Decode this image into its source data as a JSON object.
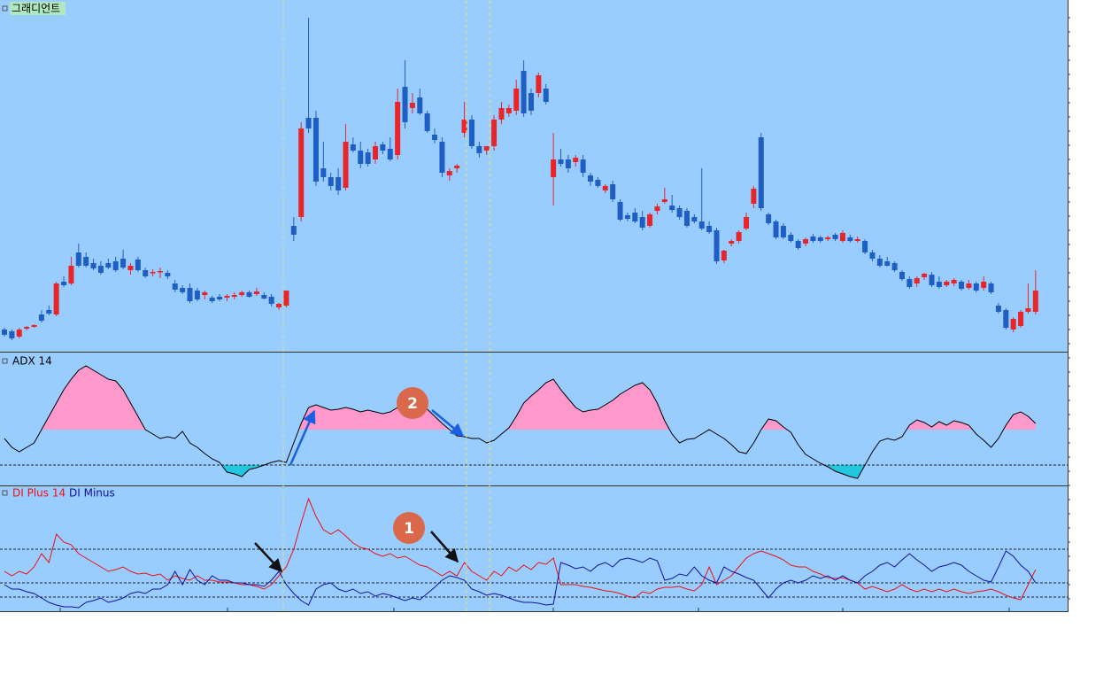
{
  "chart_data": [
    {
      "type": "candlestick",
      "title": "그래디언트",
      "up_color": "#e8262a",
      "down_color": "#1f5fc4",
      "ylim": [
        0,
        400
      ],
      "ohlc": [
        [
          28,
          30,
          20,
          22
        ],
        [
          26,
          28,
          16,
          18
        ],
        [
          20,
          30,
          18,
          28
        ],
        [
          29,
          32,
          27,
          31
        ],
        [
          31,
          34,
          30,
          33
        ],
        [
          45,
          50,
          36,
          38
        ],
        [
          50,
          55,
          44,
          46
        ],
        [
          45,
          82,
          43,
          80
        ],
        [
          82,
          88,
          76,
          78
        ],
        [
          80,
          110,
          78,
          100
        ],
        [
          115,
          125,
          98,
          100
        ],
        [
          110,
          115,
          98,
          100
        ],
        [
          103,
          108,
          95,
          97
        ],
        [
          100,
          105,
          90,
          92
        ],
        [
          103,
          108,
          96,
          98
        ],
        [
          105,
          110,
          93,
          95
        ],
        [
          108,
          118,
          96,
          98
        ],
        [
          95,
          103,
          90,
          100
        ],
        [
          107,
          110,
          93,
          95
        ],
        [
          95,
          98,
          86,
          88
        ],
        [
          92,
          96,
          88,
          93
        ],
        [
          93,
          98,
          86,
          94
        ],
        [
          92,
          95,
          85,
          88
        ],
        [
          80,
          84,
          70,
          73
        ],
        [
          75,
          78,
          68,
          70
        ],
        [
          75,
          80,
          58,
          60
        ],
        [
          72,
          75,
          60,
          62
        ],
        [
          67,
          72,
          62,
          70
        ],
        [
          64,
          66,
          58,
          60
        ],
        [
          65,
          68,
          60,
          62
        ],
        [
          64,
          68,
          60,
          66
        ],
        [
          65,
          70,
          62,
          67
        ],
        [
          67,
          72,
          65,
          70
        ],
        [
          70,
          72,
          64,
          65
        ],
        [
          68,
          75,
          66,
          71
        ],
        [
          67,
          70,
          62,
          63
        ],
        [
          65,
          68,
          54,
          57
        ],
        [
          53,
          58,
          50,
          57
        ],
        [
          55,
          72,
          53,
          72
        ],
        [
          145,
          155,
          128,
          135
        ],
        [
          155,
          262,
          150,
          255
        ],
        [
          267,
          380,
          250,
          255
        ],
        [
          267,
          275,
          190,
          195
        ],
        [
          210,
          240,
          195,
          200
        ],
        [
          200,
          205,
          185,
          190
        ],
        [
          200,
          210,
          180,
          185
        ],
        [
          188,
          260,
          185,
          240
        ],
        [
          237,
          245,
          228,
          230
        ],
        [
          230,
          240,
          210,
          215
        ],
        [
          228,
          232,
          212,
          215
        ],
        [
          220,
          240,
          215,
          235
        ],
        [
          237,
          240,
          226,
          230
        ],
        [
          232,
          245,
          218,
          220
        ],
        [
          225,
          300,
          220,
          285
        ],
        [
          302,
          332,
          255,
          262
        ],
        [
          278,
          295,
          272,
          284
        ],
        [
          290,
          300,
          270,
          272
        ],
        [
          272,
          275,
          250,
          252
        ],
        [
          248,
          255,
          238,
          242
        ],
        [
          240,
          245,
          200,
          205
        ],
        [
          202,
          210,
          196,
          207
        ],
        [
          210,
          215,
          205,
          213
        ],
        [
          250,
          285,
          245,
          265
        ],
        [
          265,
          270,
          232,
          235
        ],
        [
          235,
          240,
          222,
          227
        ],
        [
          230,
          235,
          225,
          235
        ],
        [
          235,
          270,
          230,
          265
        ],
        [
          265,
          285,
          260,
          278
        ],
        [
          272,
          282,
          268,
          278
        ],
        [
          275,
          310,
          270,
          300
        ],
        [
          320,
          332,
          268,
          272
        ],
        [
          295,
          300,
          270,
          275
        ],
        [
          295,
          318,
          290,
          315
        ],
        [
          300,
          305,
          282,
          285
        ],
        [
          200,
          250,
          168,
          220
        ],
        [
          220,
          232,
          212,
          215
        ],
        [
          220,
          225,
          205,
          210
        ],
        [
          217,
          225,
          212,
          222
        ],
        [
          220,
          225,
          200,
          205
        ],
        [
          202,
          205,
          190,
          195
        ],
        [
          197,
          200,
          188,
          190
        ],
        [
          185,
          192,
          182,
          190
        ],
        [
          192,
          196,
          172,
          175
        ],
        [
          172,
          175,
          150,
          152
        ],
        [
          157,
          160,
          150,
          153
        ],
        [
          160,
          165,
          148,
          150
        ],
        [
          155,
          162,
          140,
          143
        ],
        [
          145,
          160,
          143,
          158
        ],
        [
          162,
          170,
          158,
          167
        ],
        [
          172,
          188,
          170,
          175
        ],
        [
          168,
          180,
          160,
          163
        ],
        [
          165,
          168,
          152,
          155
        ],
        [
          162,
          165,
          143,
          145
        ],
        [
          155,
          158,
          148,
          150
        ],
        [
          150,
          210,
          140,
          142
        ],
        [
          145,
          150,
          136,
          138
        ],
        [
          140,
          143,
          102,
          105
        ],
        [
          106,
          118,
          103,
          117
        ],
        [
          125,
          130,
          122,
          128
        ],
        [
          128,
          140,
          125,
          138
        ],
        [
          142,
          160,
          140,
          155
        ],
        [
          170,
          190,
          165,
          187
        ],
        [
          245,
          250,
          162,
          165
        ],
        [
          158,
          160,
          146,
          148
        ],
        [
          150,
          152,
          130,
          132
        ],
        [
          145,
          148,
          130,
          132
        ],
        [
          135,
          138,
          126,
          128
        ],
        [
          128,
          130,
          118,
          120
        ],
        [
          125,
          132,
          122,
          130
        ],
        [
          133,
          136,
          126,
          128
        ],
        [
          132,
          134,
          126,
          128
        ],
        [
          130,
          134,
          128,
          132
        ],
        [
          135,
          137,
          128,
          130
        ],
        [
          128,
          140,
          126,
          137
        ],
        [
          132,
          135,
          126,
          128
        ],
        [
          128,
          133,
          126,
          130
        ],
        [
          128,
          130,
          113,
          115
        ],
        [
          115,
          118,
          105,
          108
        ],
        [
          108,
          112,
          98,
          100
        ],
        [
          105,
          110,
          99,
          100
        ],
        [
          103,
          105,
          93,
          95
        ],
        [
          93,
          95,
          83,
          85
        ],
        [
          85,
          88,
          74,
          76
        ],
        [
          80,
          88,
          76,
          86
        ],
        [
          87,
          92,
          84,
          91
        ],
        [
          90,
          93,
          76,
          78
        ],
        [
          82,
          88,
          74,
          76
        ],
        [
          78,
          84,
          76,
          82
        ],
        [
          80,
          86,
          77,
          84
        ],
        [
          82,
          84,
          72,
          74
        ],
        [
          75,
          84,
          73,
          80
        ],
        [
          80,
          82,
          70,
          72
        ],
        [
          75,
          88,
          72,
          82
        ],
        [
          80,
          82,
          68,
          70
        ],
        [
          55,
          58,
          46,
          48
        ],
        [
          50,
          52,
          28,
          30
        ],
        [
          28,
          42,
          25,
          40
        ],
        [
          32,
          50,
          30,
          48
        ],
        [
          48,
          80,
          46,
          52
        ],
        [
          48,
          95,
          45,
          72
        ]
      ]
    },
    {
      "type": "band",
      "title": "ADX 14",
      "color": "#000000",
      "upper": 62,
      "lower": 22,
      "upper_fill": "#ff99cc",
      "lower_fill": "#22c8e0",
      "ylim": [
        0,
        148
      ],
      "values": [
        52,
        42,
        37,
        42,
        47,
        62,
        77,
        92,
        107,
        119,
        129,
        134,
        129,
        124,
        119,
        117,
        107,
        92,
        77,
        62,
        57,
        52,
        54,
        52,
        60,
        47,
        42,
        35,
        29,
        25,
        14,
        12,
        9,
        17,
        19,
        22,
        25,
        27,
        25,
        47,
        69,
        87,
        90,
        87,
        84,
        85,
        87,
        85,
        82,
        84,
        82,
        80,
        82,
        87,
        97,
        94,
        89,
        85,
        77,
        69,
        62,
        55,
        54,
        52,
        52,
        47,
        50,
        57,
        64,
        77,
        92,
        100,
        107,
        115,
        119,
        107,
        97,
        87,
        82,
        84,
        85,
        90,
        95,
        102,
        107,
        112,
        115,
        107,
        92,
        72,
        57,
        47,
        51,
        52,
        57,
        62,
        57,
        52,
        45,
        37,
        35,
        47,
        62,
        74,
        72,
        65,
        59,
        45,
        34,
        29,
        24,
        20,
        15,
        12,
        9,
        7,
        22,
        37,
        49,
        52,
        50,
        54,
        67,
        73,
        70,
        65,
        71,
        67,
        72,
        70,
        67,
        57,
        50,
        42,
        52,
        67,
        79,
        82,
        77,
        69
      ]
    },
    {
      "type": "line",
      "levels": [
        70,
        32,
        16
      ],
      "ylim": [
        0,
        141
      ],
      "series": [
        {
          "name": "DI Plus 14",
          "color": "#ee1111",
          "values": [
            45,
            40,
            45,
            42,
            50,
            65,
            55,
            87,
            78,
            75,
            65,
            60,
            55,
            50,
            45,
            47,
            50,
            45,
            42,
            43,
            40,
            42,
            35,
            40,
            37,
            35,
            40,
            35,
            35,
            33,
            33,
            32,
            30,
            30,
            28,
            25,
            30,
            40,
            50,
            70,
            100,
            127,
            107,
            92,
            87,
            92,
            85,
            77,
            72,
            70,
            65,
            62,
            65,
            60,
            62,
            57,
            52,
            50,
            45,
            40,
            45,
            40,
            55,
            45,
            40,
            35,
            45,
            40,
            50,
            45,
            52,
            47,
            55,
            53,
            60,
            30,
            30,
            30,
            28,
            27,
            25,
            23,
            22,
            20,
            17,
            15,
            22,
            20,
            25,
            27,
            27,
            28,
            25,
            23,
            30,
            50,
            30,
            35,
            40,
            50,
            60,
            65,
            68,
            65,
            62,
            58,
            52,
            50,
            50,
            45,
            42,
            38,
            37,
            38,
            35,
            32,
            25,
            28,
            25,
            22,
            25,
            30,
            25,
            22,
            25,
            22,
            25,
            22,
            25,
            22,
            20,
            22,
            23,
            25,
            22,
            18,
            15,
            13,
            30,
            47
          ]
        },
        {
          "name": "DI Minus",
          "color": "#1212a0",
          "values": [
            30,
            25,
            25,
            22,
            20,
            15,
            10,
            7,
            5,
            5,
            4,
            10,
            12,
            15,
            10,
            12,
            15,
            20,
            22,
            20,
            25,
            25,
            30,
            45,
            30,
            47,
            35,
            30,
            40,
            35,
            35,
            32,
            32,
            30,
            30,
            28,
            35,
            45,
            30,
            20,
            12,
            7,
            25,
            30,
            32,
            25,
            22,
            25,
            20,
            22,
            17,
            20,
            18,
            15,
            12,
            15,
            13,
            20,
            27,
            35,
            40,
            38,
            35,
            25,
            22,
            18,
            20,
            18,
            15,
            12,
            10,
            10,
            9,
            7,
            8,
            55,
            52,
            48,
            50,
            45,
            52,
            55,
            50,
            58,
            60,
            58,
            55,
            60,
            57,
            35,
            37,
            42,
            40,
            50,
            40,
            35,
            32,
            50,
            45,
            42,
            38,
            35,
            25,
            15,
            25,
            32,
            35,
            32,
            35,
            40,
            37,
            40,
            35,
            40,
            35,
            32,
            40,
            45,
            52,
            55,
            50,
            58,
            65,
            58,
            52,
            45,
            50,
            52,
            55,
            52,
            45,
            40,
            35,
            33,
            50,
            68,
            62,
            52,
            45,
            32
          ]
        }
      ]
    }
  ],
  "annotations": [
    {
      "label": "1"
    },
    {
      "label": "2"
    }
  ]
}
